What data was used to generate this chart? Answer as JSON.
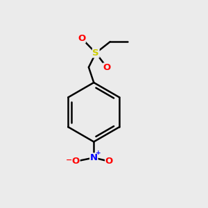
{
  "background_color": "#ebebeb",
  "bond_color": "#000000",
  "S_color": "#cccc00",
  "O_color": "#ff0000",
  "N_color": "#0000ff",
  "line_width": 1.8,
  "figsize": [
    3.0,
    3.0
  ],
  "dpi": 100,
  "S_label": "S",
  "O_label": "O",
  "N_label": "N",
  "plus_label": "+",
  "minus_label": "−"
}
